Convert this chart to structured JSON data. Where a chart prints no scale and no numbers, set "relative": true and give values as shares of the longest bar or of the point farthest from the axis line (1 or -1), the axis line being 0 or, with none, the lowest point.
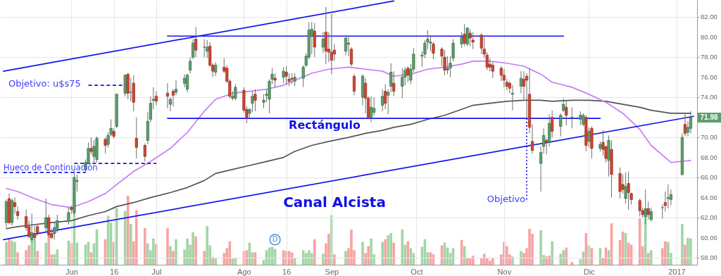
{
  "chart_data": [
    {
      "type": "candlestick",
      "grid": true,
      "x": [
        "2016-05-09",
        "2016-05-10",
        "2016-05-11",
        "2016-05-12",
        "2016-05-13",
        "2016-05-16",
        "2016-05-17",
        "2016-05-18",
        "2016-05-19",
        "2016-05-20",
        "2016-05-23",
        "2016-05-24",
        "2016-05-25",
        "2016-05-26",
        "2016-05-27",
        "2016-05-31",
        "2016-06-01",
        "2016-06-02",
        "2016-06-03",
        "2016-06-06",
        "2016-06-07",
        "2016-06-08",
        "2016-06-09",
        "2016-06-10",
        "2016-06-13",
        "2016-06-14",
        "2016-06-15",
        "2016-06-16",
        "2016-06-17",
        "2016-06-20",
        "2016-06-21",
        "2016-06-22",
        "2016-06-23",
        "2016-06-24",
        "2016-06-27",
        "2016-06-28",
        "2016-06-29",
        "2016-06-30",
        "2016-07-01",
        "2016-07-05",
        "2016-07-06",
        "2016-07-07",
        "2016-07-08",
        "2016-07-11",
        "2016-07-12",
        "2016-07-13",
        "2016-07-14",
        "2016-07-15",
        "2016-07-18",
        "2016-07-19",
        "2016-07-20",
        "2016-07-21",
        "2016-07-22",
        "2016-07-25",
        "2016-07-26",
        "2016-07-27",
        "2016-07-28",
        "2016-07-29",
        "2016-08-01",
        "2016-08-02",
        "2016-08-03",
        "2016-08-04",
        "2016-08-05",
        "2016-08-08",
        "2016-08-09",
        "2016-08-10",
        "2016-08-11",
        "2016-08-12",
        "2016-08-15",
        "2016-08-16",
        "2016-08-17",
        "2016-08-18",
        "2016-08-19",
        "2016-08-22",
        "2016-08-23",
        "2016-08-24",
        "2016-08-25",
        "2016-08-26",
        "2016-08-29",
        "2016-08-30",
        "2016-08-31",
        "2016-09-01",
        "2016-09-02",
        "2016-09-06",
        "2016-09-07",
        "2016-09-08",
        "2016-09-09",
        "2016-09-12",
        "2016-09-13",
        "2016-09-14",
        "2016-09-15",
        "2016-09-16",
        "2016-09-19",
        "2016-09-20",
        "2016-09-21",
        "2016-09-22",
        "2016-09-23",
        "2016-09-26",
        "2016-09-27",
        "2016-09-28",
        "2016-09-29",
        "2016-09-30",
        "2016-10-03",
        "2016-10-04",
        "2016-10-05",
        "2016-10-06",
        "2016-10-07",
        "2016-10-10",
        "2016-10-11",
        "2016-10-12",
        "2016-10-13",
        "2016-10-14",
        "2016-10-17",
        "2016-10-18",
        "2016-10-19",
        "2016-10-20",
        "2016-10-21",
        "2016-10-24",
        "2016-10-25",
        "2016-10-26",
        "2016-10-27",
        "2016-10-28",
        "2016-10-31",
        "2016-11-01",
        "2016-11-02",
        "2016-11-03",
        "2016-11-04",
        "2016-11-07",
        "2016-11-08",
        "2016-11-09",
        "2016-11-10",
        "2016-11-11",
        "2016-11-14",
        "2016-11-15",
        "2016-11-16",
        "2016-11-17",
        "2016-11-18",
        "2016-11-21",
        "2016-11-22",
        "2016-11-23",
        "2016-11-25",
        "2016-11-28",
        "2016-11-29",
        "2016-11-30",
        "2016-12-01",
        "2016-12-02",
        "2016-12-05",
        "2016-12-06",
        "2016-12-07",
        "2016-12-08",
        "2016-12-09",
        "2016-12-12",
        "2016-12-13",
        "2016-12-14",
        "2016-12-15",
        "2016-12-16",
        "2016-12-19",
        "2016-12-20",
        "2016-12-21",
        "2016-12-22",
        "2016-12-23",
        "2016-12-27",
        "2016-12-28",
        "2016-12-29",
        "2016-12-30",
        "2017-01-03",
        "2017-01-04",
        "2017-01-05",
        "2017-01-06"
      ],
      "ohlc": [
        [
          61.5,
          63.8,
          61.0,
          63.6
        ],
        [
          63.9,
          64.4,
          61.3,
          61.5
        ],
        [
          61.5,
          63.9,
          61.2,
          63.7
        ],
        [
          63.5,
          64.0,
          62.4,
          63.1
        ],
        [
          62.6,
          63.1,
          61.8,
          62.2
        ],
        [
          62.1,
          62.8,
          60.7,
          61.0
        ],
        [
          61.1,
          61.7,
          59.9,
          60.1
        ],
        [
          59.8,
          62.4,
          59.6,
          60.5
        ],
        [
          60.4,
          61.2,
          59.8,
          60.0
        ],
        [
          61.1,
          61.4,
          60.2,
          60.5
        ],
        [
          61.0,
          63.9,
          60.6,
          62.0
        ],
        [
          62.0,
          62.3,
          60.0,
          60.3
        ],
        [
          60.4,
          60.9,
          59.9,
          60.0
        ],
        [
          60.4,
          61.5,
          59.8,
          61.0
        ],
        [
          60.9,
          62.3,
          60.5,
          61.7
        ],
        [
          61.6,
          63.0,
          61.3,
          62.5
        ],
        [
          63.0,
          63.2,
          62.4,
          62.8
        ],
        [
          62.5,
          66.7,
          62.3,
          66.0
        ],
        [
          65.6,
          66.3,
          64.6,
          65.7
        ],
        [
          66.8,
          67.8,
          66.5,
          67.5
        ],
        [
          67.4,
          69.5,
          67.3,
          68.9
        ],
        [
          68.9,
          70.0,
          68.3,
          68.6
        ],
        [
          68.1,
          69.7,
          67.3,
          69.1
        ],
        [
          67.8,
          70.1,
          67.5,
          69.9
        ],
        [
          69.8,
          70.0,
          68.4,
          69.2
        ],
        [
          69.3,
          70.5,
          69.0,
          70.2
        ],
        [
          70.3,
          71.8,
          70.1,
          70.9
        ],
        [
          70.6,
          70.9,
          69.9,
          70.1
        ],
        [
          71.1,
          74.4,
          70.9,
          74.3
        ],
        [
          74.4,
          76.3,
          74.1,
          76.2
        ],
        [
          76.3,
          76.4,
          73.8,
          74.4
        ],
        [
          74.5,
          75.9,
          73.6,
          74.5
        ],
        [
          75.4,
          76.2,
          72.6,
          73.5
        ],
        [
          69.9,
          72.0,
          67.9,
          69.0
        ],
        [
          69.2,
          69.4,
          67.6,
          68.1
        ],
        [
          69.7,
          72.5,
          69.3,
          71.6
        ],
        [
          71.8,
          74.1,
          71.5,
          73.4
        ],
        [
          73.7,
          75.0,
          72.8,
          73.8
        ],
        [
          74.1,
          74.6,
          73.2,
          73.6
        ],
        [
          74.4,
          75.4,
          72.9,
          74.1
        ],
        [
          73.3,
          74.0,
          72.6,
          73.8
        ],
        [
          74.6,
          74.8,
          73.1,
          74.2
        ],
        [
          74.5,
          75.7,
          74.2,
          74.8
        ],
        [
          75.4,
          76.3,
          75.0,
          75.9
        ],
        [
          74.8,
          76.4,
          74.5,
          76.2
        ],
        [
          76.7,
          78.0,
          76.4,
          77.6
        ],
        [
          78.0,
          79.8,
          77.8,
          79.4
        ],
        [
          79.8,
          81.0,
          78.0,
          78.7
        ],
        [
          79.0,
          79.8,
          78.0,
          79.0
        ],
        [
          78.6,
          79.7,
          77.9,
          79.0
        ],
        [
          79.1,
          79.5,
          77.0,
          77.2
        ],
        [
          77.2,
          77.4,
          76.0,
          76.6
        ],
        [
          76.5,
          77.5,
          76.1,
          77.2
        ],
        [
          77.0,
          77.9,
          76.4,
          76.6
        ],
        [
          76.9,
          77.2,
          75.4,
          75.6
        ],
        [
          75.6,
          75.8,
          73.9,
          74.1
        ],
        [
          73.9,
          74.6,
          73.7,
          74.1
        ],
        [
          73.9,
          75.3,
          73.7,
          75.0
        ],
        [
          74.7,
          75.0,
          72.5,
          72.7
        ],
        [
          72.8,
          73.1,
          71.4,
          72.0
        ],
        [
          72.4,
          72.9,
          72.0,
          72.8
        ],
        [
          73.4,
          74.6,
          72.5,
          74.1
        ],
        [
          74.3,
          74.8,
          72.6,
          73.7
        ],
        [
          73.5,
          74.3,
          72.9,
          73.7
        ],
        [
          74.2,
          74.8,
          73.5,
          74.3
        ],
        [
          73.8,
          75.8,
          72.4,
          75.6
        ],
        [
          75.8,
          76.9,
          75.3,
          76.3
        ],
        [
          75.9,
          76.4,
          75.0,
          75.7
        ],
        [
          76.0,
          77.0,
          75.4,
          76.6
        ],
        [
          76.5,
          77.1,
          75.3,
          76.1
        ],
        [
          75.8,
          76.4,
          75.1,
          75.6
        ],
        [
          75.9,
          76.4,
          75.3,
          75.8
        ],
        [
          75.6,
          76.4,
          75.1,
          76.0
        ],
        [
          75.9,
          77.2,
          75.0,
          77.0
        ],
        [
          77.2,
          78.4,
          77.0,
          78.1
        ],
        [
          78.0,
          81.5,
          77.8,
          80.7
        ],
        [
          80.1,
          81.5,
          78.3,
          80.8
        ],
        [
          80.6,
          81.4,
          78.0,
          79.0
        ],
        [
          79.0,
          80.5,
          78.4,
          79.8
        ],
        [
          80.5,
          83.0,
          77.3,
          78.6
        ],
        [
          78.8,
          80.5,
          77.5,
          78.5
        ],
        [
          78.5,
          82.3,
          76.3,
          77.7
        ],
        [
          78.7,
          79.3,
          77.6,
          78.3
        ],
        [
          78.6,
          80.2,
          78.2,
          79.9
        ],
        [
          79.4,
          80.1,
          78.1,
          79.3
        ],
        [
          78.8,
          79.0,
          77.1,
          77.3
        ],
        [
          76.1,
          76.3,
          74.2,
          74.6
        ],
        [
          74.0,
          76.3,
          73.2,
          76.1
        ],
        [
          75.4,
          75.9,
          72.4,
          73.9
        ],
        [
          73.9,
          74.1,
          71.8,
          72.0
        ],
        [
          72.0,
          74.1,
          71.5,
          73.0
        ],
        [
          72.5,
          74.0,
          72.2,
          72.9
        ],
        [
          73.2,
          74.8,
          72.6,
          74.1
        ],
        [
          74.6,
          75.3,
          72.8,
          73.4
        ],
        [
          74.2,
          74.8,
          72.3,
          74.5
        ],
        [
          75.1,
          77.4,
          74.5,
          76.5
        ],
        [
          75.4,
          76.6,
          74.1,
          74.6
        ],
        [
          75.1,
          76.9,
          73.9,
          76.0
        ],
        [
          76.0,
          77.0,
          75.2,
          76.7
        ],
        [
          76.9,
          77.1,
          75.5,
          76.2
        ],
        [
          75.7,
          77.3,
          75.3,
          76.8
        ],
        [
          76.8,
          78.9,
          76.5,
          78.3
        ],
        [
          78.1,
          78.6,
          77.0,
          78.2
        ],
        [
          78.3,
          79.7,
          77.9,
          79.4
        ],
        [
          79.5,
          80.7,
          78.8,
          79.8
        ],
        [
          79.4,
          80.2,
          78.6,
          79.5
        ],
        [
          79.3,
          79.5,
          77.8,
          78.4
        ],
        [
          78.8,
          79.0,
          77.1,
          78.1
        ],
        [
          78.0,
          78.7,
          76.2,
          76.7
        ],
        [
          76.7,
          78.1,
          76.3,
          76.9
        ],
        [
          76.9,
          78.1,
          76.0,
          77.4
        ],
        [
          77.9,
          79.8,
          77.6,
          79.4
        ],
        [
          79.3,
          80.5,
          78.9,
          80.0
        ],
        [
          80.3,
          81.3,
          79.1,
          79.4
        ],
        [
          79.3,
          81.0,
          79.1,
          80.9
        ],
        [
          80.4,
          80.8,
          79.1,
          79.9
        ],
        [
          79.7,
          80.5,
          78.8,
          79.5
        ],
        [
          80.2,
          80.4,
          78.3,
          78.9
        ],
        [
          78.8,
          80.0,
          77.9,
          78.3
        ],
        [
          78.2,
          78.5,
          76.7,
          77.0
        ],
        [
          77.3,
          77.9,
          76.6,
          77.0
        ],
        [
          77.2,
          77.5,
          75.9,
          76.6
        ],
        [
          76.9,
          77.1,
          75.6,
          76.2
        ],
        [
          76.2,
          76.8,
          75.0,
          75.7
        ],
        [
          75.5,
          75.8,
          74.7,
          75.1
        ],
        [
          75.4,
          75.6,
          74.4,
          74.9
        ],
        [
          74.3,
          75.2,
          72.7,
          74.4
        ],
        [
          75.1,
          76.6,
          74.4,
          75.9
        ],
        [
          75.8,
          76.6,
          73.8,
          75.1
        ],
        [
          76.1,
          76.4,
          71.8,
          75.7
        ],
        [
          74.3,
          76.9,
          70.4,
          71.0
        ],
        [
          69.6,
          71.3,
          68.4,
          68.7
        ],
        [
          67.4,
          69.1,
          64.6,
          68.5
        ],
        [
          69.1,
          70.9,
          68.4,
          70.2
        ],
        [
          69.7,
          69.9,
          68.3,
          69.5
        ],
        [
          69.5,
          72.3,
          69.1,
          71.4
        ],
        [
          72.0,
          72.7,
          70.0,
          70.6
        ],
        [
          71.1,
          72.4,
          70.1,
          72.2
        ],
        [
          72.7,
          73.9,
          72.5,
          73.3
        ],
        [
          73.0,
          73.6,
          71.2,
          72.2
        ],
        [
          72.0,
          73.0,
          70.9,
          72.0
        ],
        [
          71.8,
          72.6,
          71.2,
          72.2
        ],
        [
          71.3,
          72.4,
          71.1,
          72.2
        ],
        [
          72.0,
          72.2,
          68.6,
          69.2
        ],
        [
          69.6,
          71.0,
          69.0,
          70.6
        ],
        [
          70.9,
          71.1,
          67.9,
          68.9
        ],
        [
          68.9,
          69.6,
          68.6,
          69.3
        ],
        [
          69.5,
          70.7,
          68.2,
          68.8
        ],
        [
          69.1,
          69.1,
          67.5,
          67.9
        ],
        [
          67.7,
          70.2,
          66.1,
          69.7
        ],
        [
          68.8,
          69.7,
          64.0,
          66.3
        ],
        [
          66.4,
          67.0,
          63.9,
          64.6
        ],
        [
          65.3,
          66.3,
          64.4,
          64.8
        ],
        [
          63.9,
          66.5,
          63.4,
          65.1
        ],
        [
          65.4,
          66.6,
          62.8,
          64.5
        ],
        [
          64.4,
          64.5,
          63.3,
          63.8
        ],
        [
          63.7,
          63.9,
          62.1,
          62.7
        ],
        [
          62.7,
          63.0,
          62.0,
          62.3
        ],
        [
          62.1,
          64.8,
          61.3,
          62.9
        ],
        [
          62.9,
          63.6,
          61.8,
          62.3
        ],
        [
          61.8,
          63.0,
          61.6,
          62.6
        ],
        [
          63.0,
          63.3,
          61.9,
          63.0
        ],
        [
          63.5,
          64.6,
          62.6,
          63.2
        ],
        [
          63.9,
          65.3,
          62.9,
          64.0
        ],
        [
          63.8,
          64.8,
          63.2,
          64.3
        ],
        [
          66.3,
          70.4,
          66.2,
          70.0
        ],
        [
          71.3,
          72.4,
          70.1,
          70.4
        ],
        [
          70.5,
          71.6,
          70.1,
          71.0
        ],
        [
          70.9,
          72.6,
          70.4,
          71.98
        ]
      ],
      "xlim": [
        "2016-05-08",
        "2017-01-07"
      ],
      "xticks": [
        {
          "value": "2016-06-01",
          "label": "Jun"
        },
        {
          "value": "2016-06-16",
          "label": "16"
        },
        {
          "value": "2016-07-01",
          "label": "Jul"
        },
        {
          "value": "2016-08-01",
          "label": "Ago"
        },
        {
          "value": "2016-08-16",
          "label": "16"
        },
        {
          "value": "2016-09-01",
          "label": "Sep"
        },
        {
          "value": "2016-10-01",
          "label": "Oct"
        },
        {
          "value": "2016-11-01",
          "label": "Nov"
        },
        {
          "value": "2016-12-01",
          "label": "Dic"
        },
        {
          "value": "2017-01-01",
          "label": "2017"
        }
      ],
      "ylim": [
        57.3,
        83.7
      ],
      "yticks": [
        {
          "value": 58,
          "label": "58.00"
        },
        {
          "value": 60,
          "label": "60.00"
        },
        {
          "value": 62,
          "label": "62.00"
        },
        {
          "value": 64,
          "label": "64.00"
        },
        {
          "value": 66,
          "label": "66.00"
        },
        {
          "value": 68,
          "label": "68.00"
        },
        {
          "value": 70,
          "label": "70.00"
        },
        {
          "value": 72,
          "label": null
        },
        {
          "value": 74,
          "label": "74.00"
        },
        {
          "value": 76,
          "label": "76.00"
        },
        {
          "value": 78,
          "label": "78.00"
        },
        {
          "value": 80,
          "label": "80.00"
        },
        {
          "value": 82,
          "label": "82.00"
        }
      ],
      "series": [
        {
          "type": "line",
          "color": "#555555",
          "x": [
            "2016-05-09",
            "2016-05-13",
            "2016-05-19",
            "2016-05-25",
            "2016-06-01",
            "2016-06-07",
            "2016-06-13",
            "2016-06-17",
            "2016-06-23",
            "2016-06-29",
            "2016-07-06",
            "2016-07-12",
            "2016-07-18",
            "2016-07-22",
            "2016-07-28",
            "2016-08-03",
            "2016-08-09",
            "2016-08-15",
            "2016-08-19",
            "2016-08-25",
            "2016-08-31",
            "2016-09-07",
            "2016-09-13",
            "2016-09-19",
            "2016-09-23",
            "2016-09-29",
            "2016-10-05",
            "2016-10-11",
            "2016-10-17",
            "2016-10-21",
            "2016-10-27",
            "2016-11-02",
            "2016-11-08",
            "2016-11-14",
            "2016-11-18",
            "2016-11-25",
            "2016-12-01",
            "2016-12-07",
            "2016-12-13",
            "2016-12-19",
            "2016-12-23",
            "2016-12-30",
            "2017-01-06"
          ],
          "values": [
            60.9,
            61.1,
            61.3,
            61.5,
            61.7,
            62.2,
            62.6,
            63.1,
            63.5,
            64.0,
            64.5,
            65.0,
            65.7,
            66.4,
            66.8,
            67.2,
            67.6,
            68.0,
            68.6,
            69.2,
            69.6,
            70.0,
            70.4,
            70.7,
            71.0,
            71.3,
            71.8,
            72.2,
            72.8,
            73.2,
            73.4,
            73.6,
            73.7,
            73.7,
            73.6,
            73.7,
            73.7,
            73.6,
            73.3,
            73.0,
            72.7,
            72.4,
            72.4
          ]
        },
        {
          "type": "line",
          "color": "#c77df3",
          "x": [
            "2016-05-09",
            "2016-05-13",
            "2016-05-19",
            "2016-05-25",
            "2016-06-01",
            "2016-06-07",
            "2016-06-13",
            "2016-06-17",
            "2016-06-23",
            "2016-06-29",
            "2016-07-06",
            "2016-07-12",
            "2016-07-18",
            "2016-07-22",
            "2016-07-28",
            "2016-08-03",
            "2016-08-09",
            "2016-08-15",
            "2016-08-19",
            "2016-08-25",
            "2016-08-31",
            "2016-09-07",
            "2016-09-13",
            "2016-09-19",
            "2016-09-23",
            "2016-09-29",
            "2016-10-05",
            "2016-10-11",
            "2016-10-17",
            "2016-10-21",
            "2016-10-27",
            "2016-11-02",
            "2016-11-08",
            "2016-11-14",
            "2016-11-18",
            "2016-11-25",
            "2016-12-01",
            "2016-12-07",
            "2016-12-13",
            "2016-12-19",
            "2016-12-23",
            "2016-12-30",
            "2017-01-06"
          ],
          "values": [
            64.9,
            64.6,
            63.9,
            63.3,
            63.0,
            63.6,
            64.4,
            65.3,
            66.6,
            67.6,
            68.9,
            70.5,
            72.6,
            73.8,
            74.4,
            74.6,
            74.8,
            75.2,
            75.7,
            76.4,
            76.8,
            77.0,
            76.8,
            76.6,
            76.1,
            76.3,
            76.8,
            77.0,
            77.3,
            77.6,
            77.6,
            77.4,
            77.1,
            76.3,
            75.5,
            75.0,
            74.3,
            73.5,
            72.4,
            70.8,
            69.2,
            67.5,
            67.7
          ]
        },
        {
          "type": "line",
          "color": "#1414f0",
          "x": [
            "2016-05-08",
            "2016-09-23"
          ],
          "values": [
            76.6,
            83.6
          ]
        },
        {
          "type": "line",
          "color": "#1414f0",
          "x": [
            "2016-05-08",
            "2017-01-07"
          ],
          "values": [
            59.8,
            72.1
          ]
        },
        {
          "type": "line",
          "color": "#1414f0",
          "x": [
            "2016-07-05",
            "2016-11-22"
          ],
          "values": [
            80.1,
            80.1
          ]
        },
        {
          "type": "line",
          "color": "#1414f0",
          "x": [
            "2016-07-05",
            "2016-12-05"
          ],
          "values": [
            71.9,
            71.9
          ]
        },
        {
          "type": "line",
          "color": "#1414f0",
          "line_style": "dashed",
          "x": [
            "2016-06-07",
            "2016-06-21"
          ],
          "values": [
            75.2,
            75.2
          ]
        },
        {
          "type": "line",
          "color": "#1414f0",
          "line_style": "dashed",
          "x": [
            "2016-05-08",
            "2016-06-06"
          ],
          "values": [
            66.5,
            66.5
          ]
        },
        {
          "type": "line",
          "color": "#1414f0",
          "line_style": "dashed",
          "x": [
            "2016-06-02",
            "2016-07-01"
          ],
          "values": [
            67.4,
            67.4
          ]
        },
        {
          "type": "line",
          "color": "#1414f0",
          "line_style": "dotted",
          "x": [
            "2016-11-09",
            "2016-11-09"
          ],
          "values": [
            71.9,
            63.8
          ]
        }
      ],
      "annotations": [
        "Objetivo: u$s75",
        "Hueco de Continuación",
        "Rectángulo",
        "Canal Alcista",
        "Objetivo",
        "71.98",
        {
          "text": "D",
          "x": "2016-08-12",
          "y": 59.8
        }
      ]
    },
    {
      "type": "bar",
      "relative": true,
      "x": [
        "2016-05-09",
        "2016-05-10",
        "2016-05-11",
        "2016-05-12",
        "2016-05-13",
        "2016-05-16",
        "2016-05-17",
        "2016-05-18",
        "2016-05-19",
        "2016-05-20",
        "2016-05-23",
        "2016-05-24",
        "2016-05-25",
        "2016-05-26",
        "2016-05-27",
        "2016-05-31",
        "2016-06-01",
        "2016-06-02",
        "2016-06-03",
        "2016-06-06",
        "2016-06-07",
        "2016-06-08",
        "2016-06-09",
        "2016-06-10",
        "2016-06-13",
        "2016-06-14",
        "2016-06-15",
        "2016-06-16",
        "2016-06-17",
        "2016-06-20",
        "2016-06-21",
        "2016-06-22",
        "2016-06-23",
        "2016-06-24",
        "2016-06-27",
        "2016-06-28",
        "2016-06-29",
        "2016-06-30",
        "2016-07-01",
        "2016-07-05",
        "2016-07-06",
        "2016-07-07",
        "2016-07-08",
        "2016-07-11",
        "2016-07-12",
        "2016-07-13",
        "2016-07-14",
        "2016-07-15",
        "2016-07-18",
        "2016-07-19",
        "2016-07-20",
        "2016-07-21",
        "2016-07-22",
        "2016-07-25",
        "2016-07-26",
        "2016-07-27",
        "2016-07-28",
        "2016-07-29",
        "2016-08-01",
        "2016-08-02",
        "2016-08-03",
        "2016-08-04",
        "2016-08-05",
        "2016-08-08",
        "2016-08-09",
        "2016-08-10",
        "2016-08-11",
        "2016-08-12",
        "2016-08-15",
        "2016-08-16",
        "2016-08-17",
        "2016-08-18",
        "2016-08-19",
        "2016-08-22",
        "2016-08-23",
        "2016-08-24",
        "2016-08-25",
        "2016-08-26",
        "2016-08-29",
        "2016-08-30",
        "2016-08-31",
        "2016-09-01",
        "2016-09-02",
        "2016-09-06",
        "2016-09-07",
        "2016-09-08",
        "2016-09-09",
        "2016-09-12",
        "2016-09-13",
        "2016-09-14",
        "2016-09-15",
        "2016-09-16",
        "2016-09-19",
        "2016-09-20",
        "2016-09-21",
        "2016-09-22",
        "2016-09-23",
        "2016-09-26",
        "2016-09-27",
        "2016-09-28",
        "2016-09-29",
        "2016-09-30",
        "2016-10-03",
        "2016-10-04",
        "2016-10-05",
        "2016-10-06",
        "2016-10-07",
        "2016-10-10",
        "2016-10-11",
        "2016-10-12",
        "2016-10-13",
        "2016-10-14",
        "2016-10-17",
        "2016-10-18",
        "2016-10-19",
        "2016-10-20",
        "2016-10-21",
        "2016-10-24",
        "2016-10-25",
        "2016-10-26",
        "2016-10-27",
        "2016-10-28",
        "2016-10-31",
        "2016-11-01",
        "2016-11-02",
        "2016-11-03",
        "2016-11-04",
        "2016-11-07",
        "2016-11-08",
        "2016-11-09",
        "2016-11-10",
        "2016-11-11",
        "2016-11-14",
        "2016-11-15",
        "2016-11-16",
        "2016-11-17",
        "2016-11-18",
        "2016-11-21",
        "2016-11-22",
        "2016-11-23",
        "2016-11-25",
        "2016-11-28",
        "2016-11-29",
        "2016-11-30",
        "2016-12-01",
        "2016-12-02",
        "2016-12-05",
        "2016-12-06",
        "2016-12-07",
        "2016-12-08",
        "2016-12-09",
        "2016-12-12",
        "2016-12-13",
        "2016-12-14",
        "2016-12-15",
        "2016-12-16",
        "2016-12-19",
        "2016-12-20",
        "2016-12-21",
        "2016-12-22",
        "2016-12-23",
        "2016-12-27",
        "2016-12-28",
        "2016-12-29",
        "2016-12-30",
        "2017-01-03",
        "2017-01-04",
        "2017-01-05",
        "2017-01-06"
      ],
      "xlim": [
        "2016-05-08",
        "2017-01-07"
      ],
      "values": [
        0.33,
        0.38,
        0.35,
        0.33,
        0.18,
        0.21,
        0.28,
        0.37,
        0.37,
        0.2,
        0.32,
        0.47,
        0.15,
        0.15,
        0.22,
        0.35,
        0.31,
        0.95,
        0.32,
        0.29,
        0.33,
        0.18,
        0.31,
        0.51,
        0.37,
        0.71,
        0.61,
        0.33,
        0.82,
        0.78,
        1,
        0.59,
        0.34,
        0.79,
        0.53,
        0.31,
        0.21,
        0.38,
        0.3,
        0.53,
        0.27,
        0.2,
        0.37,
        0.22,
        0.38,
        0.29,
        0.47,
        0.41,
        0.2,
        0.56,
        0.28,
        0.11,
        0.09,
        0.17,
        0.24,
        0.34,
        0.09,
        0.1,
        0.2,
        0.21,
        0.32,
        0.18,
        0.18,
        0.07,
        0.21,
        0.25,
        0.26,
        0.23,
        0.21,
        0.2,
        0.2,
        0.18,
        0.1,
        0.21,
        0.17,
        0.21,
        0.17,
        0.37,
        0.16,
        0.31,
        0.45,
        0.72,
        0.15,
        0.2,
        0.24,
        0.51,
        0.21,
        0.33,
        0.17,
        0.27,
        0.38,
        0.15,
        0.33,
        0.37,
        0.43,
        0.46,
        0.32,
        0.51,
        0.29,
        0.34,
        0.24,
        0.17,
        0.26,
        0.37,
        0.18,
        0.18,
        0.15,
        0.28,
        0.32,
        0.25,
        0.17,
        0.24,
        0.36,
        0.27,
        0.09,
        0.1,
        0.13,
        0.1,
        0.16,
        0.1,
        0.06,
        0.1,
        0.15,
        0.33,
        0.27,
        0.15,
        0.12,
        0.2,
        0.17,
        0.24,
        0.52,
        0.45,
        0.5,
        0.14,
        0.12,
        0.13,
        0.34,
        0.16,
        0.21,
        0.25,
        0.04,
        0.08,
        0.19,
        0.46,
        0.28,
        0.24,
        0.24,
        0.1,
        0.25,
        0.21,
        0.6,
        0.36,
        0.48,
        0.46,
        0.32,
        0.29,
        0.67,
        0.27,
        0.76,
        0.17,
        0.21,
        0.24,
        0.34,
        0.33,
        0.17,
        0.59,
        0.29,
        0.39,
        0.38
      ],
      "colors": [
        "#a3d5a6",
        "#f8a3a3",
        "#a3d5a6",
        "#a3d5a6",
        "#f8a3a3",
        "#f8a3a3",
        "#f8a3a3",
        "#a3d5a6",
        "#a3d5a6",
        "#f8a3a3",
        "#a3d5a6",
        "#f8a3a3",
        "#f8a3a3",
        "#a3d5a6",
        "#a3d5a6",
        "#a3d5a6",
        "#f8a3a3",
        "#a3d5a6",
        "#a3d5a6",
        "#a3d5a6",
        "#a3d5a6",
        "#f8a3a3",
        "#a3d5a6",
        "#a3d5a6",
        "#f8a3a3",
        "#a3d5a6",
        "#a3d5a6",
        "#f8a3a3",
        "#a3d5a6",
        "#a3d5a6",
        "#f8a3a3",
        "#a3d5a6",
        "#f8a3a3",
        "#f8a3a3",
        "#f8a3a3",
        "#a3d5a6",
        "#a3d5a6",
        "#a3d5a6",
        "#f8a3a3",
        "#f8a3a3",
        "#a3d5a6",
        "#f8a3a3",
        "#a3d5a6",
        "#a3d5a6",
        "#a3d5a6",
        "#a3d5a6",
        "#a3d5a6",
        "#f8a3a3",
        "#f8a3a3",
        "#a3d5a6",
        "#a3d5a6",
        "#f8a3a3",
        "#a3d5a6",
        "#f8a3a3",
        "#f8a3a3",
        "#f8a3a3",
        "#a3d5a6",
        "#a3d5a6",
        "#f8a3a3",
        "#f8a3a3",
        "#a3d5a6",
        "#a3d5a6",
        "#f8a3a3",
        "#a3d5a6",
        "#a3d5a6",
        "#a3d5a6",
        "#a3d5a6",
        "#a3d5a6",
        "#f8a3a3",
        "#f8a3a3",
        "#f8a3a3",
        "#f8a3a3",
        "#a3d5a6",
        "#a3d5a6",
        "#a3d5a6",
        "#a3d5a6",
        "#a3d5a6",
        "#f8a3a3",
        "#a3d5a6",
        "#f8a3a3",
        "#f8a3a3",
        "#a3d5a6",
        "#f8a3a3",
        "#a3d5a6",
        "#f8a3a3",
        "#f8a3a3",
        "#f8a3a3",
        "#a3d5a6",
        "#f8a3a3",
        "#f8a3a3",
        "#a3d5a6",
        "#a3d5a6",
        "#a3d5a6",
        "#f8a3a3",
        "#a3d5a6",
        "#a3d5a6",
        "#f8a3a3",
        "#a3d5a6",
        "#a3d5a6",
        "#f8a3a3",
        "#a3d5a6",
        "#a3d5a6",
        "#a3d5a6",
        "#a3d5a6",
        "#a3d5a6",
        "#f8a3a3",
        "#f8a3a3",
        "#f8a3a3",
        "#a3d5a6",
        "#a3d5a6",
        "#a3d5a6",
        "#a3d5a6",
        "#f8a3a3",
        "#a3d5a6",
        "#f8a3a3",
        "#f8a3a3",
        "#f8a3a3",
        "#f8a3a3",
        "#f8a3a3",
        "#f8a3a3",
        "#f8a3a3",
        "#f8a3a3",
        "#f8a3a3",
        "#f8a3a3",
        "#f8a3a3",
        "#f8a3a3",
        "#a3d5a6",
        "#a3d5a6",
        "#f8a3a3",
        "#f8a3a3",
        "#f8a3a3",
        "#f8a3a3",
        "#a3d5a6",
        "#a3d5a6",
        "#f8a3a3",
        "#f8a3a3",
        "#a3d5a6",
        "#a3d5a6",
        "#a3d5a6",
        "#f8a3a3",
        "#f8a3a3",
        "#a3d5a6",
        "#a3d5a6",
        "#f8a3a3",
        "#a3d5a6",
        "#f8a3a3",
        "#a3d5a6",
        "#f8a3a3",
        "#f8a3a3",
        "#a3d5a6",
        "#f8a3a3",
        "#f8a3a3",
        "#f8a3a3",
        "#a3d5a6",
        "#f8a3a3",
        "#f8a3a3",
        "#f8a3a3",
        "#f8a3a3",
        "#a3d5a6",
        "#f8a3a3",
        "#a3d5a6",
        "#f8a3a3",
        "#f8a3a3",
        "#a3d5a6",
        "#a3d5a6",
        "#a3d5a6",
        "#f8a3a3",
        "#a3d5a6",
        "#a3d5a6"
      ]
    }
  ]
}
